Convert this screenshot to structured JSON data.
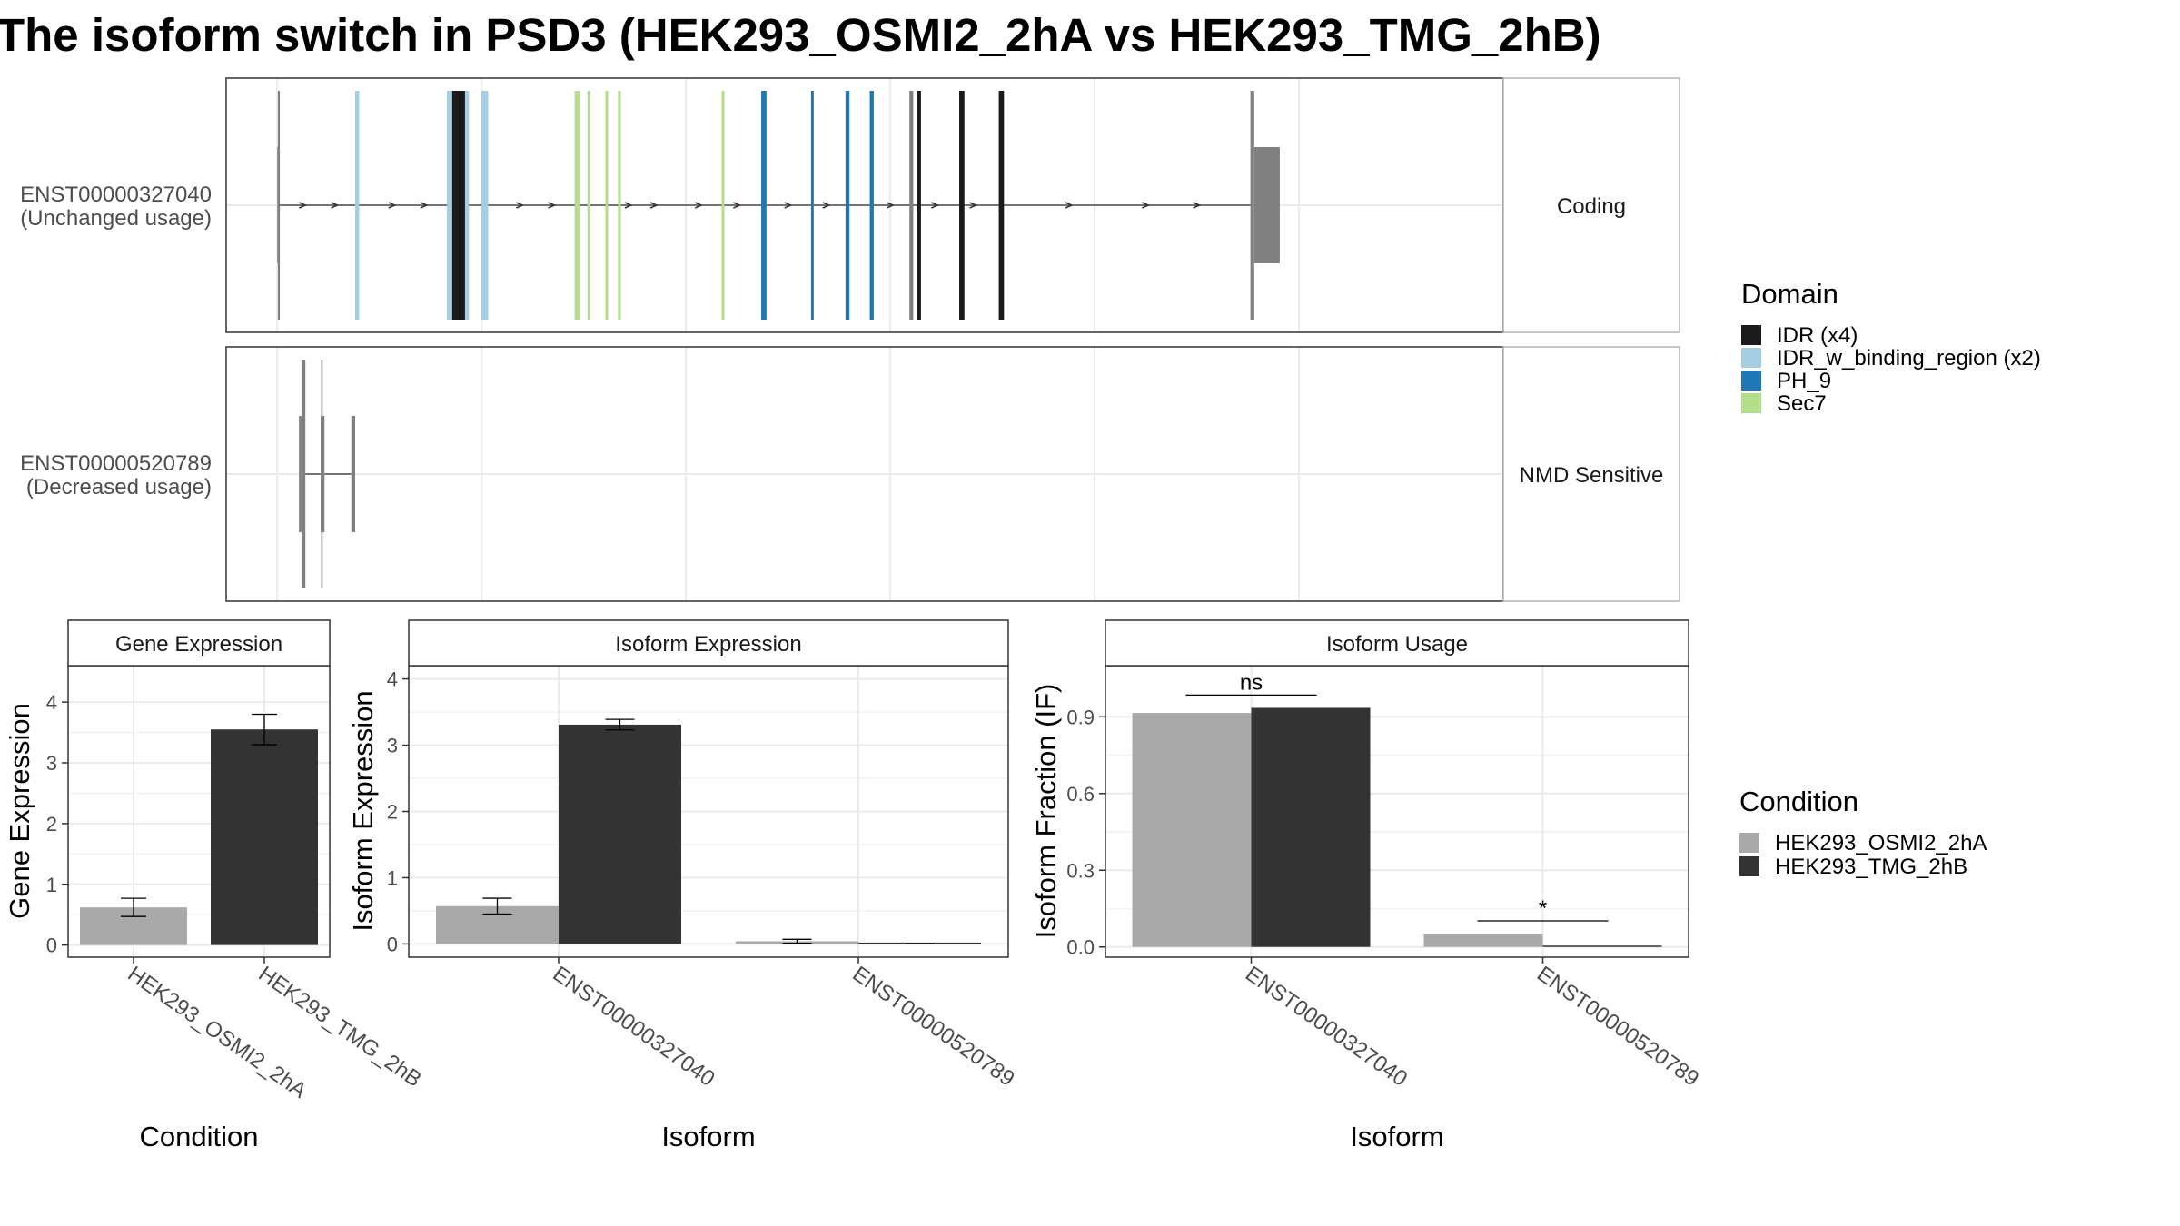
{
  "title": "The isoform switch in PSD3 (HEK293_OSMI2_2hA vs HEK293_TMG_2hB)",
  "colors": {
    "condition_a": "#a9a9a9",
    "condition_b": "#333333",
    "exon": "#808080",
    "IDR": "#1a1a1a",
    "IDR_w_binding_region": "#a6cee3",
    "PH_9": "#1f78b4",
    "Sec7": "#b2df8a"
  },
  "transcripts": [
    {
      "label_id": "ENST00000327040",
      "label_usage": "(Unchanged usage)",
      "strip": "Coding",
      "utr": [
        [
          40,
          40.5
        ],
        [
          805,
          825
        ]
      ],
      "exons": [
        [
          40.5,
          42
        ],
        [
          101,
          104
        ],
        [
          173,
          190
        ],
        [
          200,
          205
        ],
        [
          273,
          277
        ],
        [
          283,
          285
        ],
        [
          297,
          299
        ],
        [
          307,
          309
        ],
        [
          388,
          390
        ],
        [
          419,
          423
        ],
        [
          458,
          460
        ],
        [
          485,
          488
        ],
        [
          504,
          507
        ],
        [
          535,
          538
        ],
        [
          541,
          544
        ],
        [
          574,
          578
        ],
        [
          605,
          609
        ],
        [
          802,
          805
        ]
      ],
      "domains": [
        {
          "type": "IDR_w_binding_region",
          "from": 101,
          "to": 104
        },
        {
          "type": "IDR_w_binding_region",
          "from": 173,
          "to": 190
        },
        {
          "type": "IDR",
          "from": 177,
          "to": 187
        },
        {
          "type": "IDR_w_binding_region",
          "from": 200,
          "to": 205
        },
        {
          "type": "Sec7",
          "from": 273,
          "to": 277
        },
        {
          "type": "Sec7",
          "from": 283,
          "to": 285
        },
        {
          "type": "Sec7",
          "from": 297,
          "to": 299
        },
        {
          "type": "Sec7",
          "from": 307,
          "to": 309
        },
        {
          "type": "Sec7",
          "from": 388,
          "to": 390
        },
        {
          "type": "PH_9",
          "from": 419,
          "to": 423
        },
        {
          "type": "PH_9",
          "from": 458,
          "to": 460
        },
        {
          "type": "PH_9",
          "from": 485,
          "to": 488
        },
        {
          "type": "PH_9",
          "from": 504,
          "to": 507
        },
        {
          "type": "IDR",
          "from": 541,
          "to": 544
        },
        {
          "type": "IDR",
          "from": 574,
          "to": 578
        },
        {
          "type": "IDR",
          "from": 605,
          "to": 609
        }
      ],
      "arrows": [
        60,
        85,
        130,
        155,
        230,
        255,
        315,
        335,
        370,
        400,
        440,
        470,
        520,
        555,
        585,
        660,
        720,
        760
      ]
    },
    {
      "label_id": "ENST00000520789",
      "label_usage": "(Decreased usage)",
      "strip": "NMD Sensitive",
      "utr": [],
      "coding_exons": [
        [
          59,
          62
        ]
      ],
      "nc_exons": [
        [
          57,
          59
        ],
        [
          74,
          77
        ],
        [
          98,
          101
        ]
      ],
      "introns": [
        [
          62,
          74
        ],
        [
          77,
          98
        ],
        [
          74,
          77
        ]
      ]
    }
  ],
  "transcript_axis": {
    "xlim": [
      0,
      1000
    ],
    "gridlines": [
      40,
      200,
      360,
      520,
      680,
      840
    ]
  },
  "domain_legend": {
    "title": "Domain",
    "items": [
      {
        "label": "IDR (x4)",
        "key": "IDR"
      },
      {
        "label": "IDR_w_binding_region (x2)",
        "key": "IDR_w_binding_region"
      },
      {
        "label": "PH_9",
        "key": "PH_9"
      },
      {
        "label": "Sec7",
        "key": "Sec7"
      }
    ]
  },
  "condition_legend": {
    "title": "Condition",
    "items": [
      {
        "label": "HEK293_OSMI2_2hA",
        "key": "condition_a"
      },
      {
        "label": "HEK293_TMG_2hB",
        "key": "condition_b"
      }
    ]
  },
  "chart_data": [
    {
      "type": "bar",
      "title": "Gene Expression",
      "xlabel": "Condition",
      "ylabel": "Gene Expression",
      "categories": [
        "HEK293_OSMI2_2hA",
        "HEK293_TMG_2hB"
      ],
      "values": [
        0.62,
        3.55
      ],
      "error": [
        [
          0.47,
          0.77
        ],
        [
          3.3,
          3.8
        ]
      ],
      "ylim": [
        -0.2,
        4.6
      ],
      "yticks": [
        "0",
        "1",
        "2",
        "3",
        "4"
      ],
      "ytick_values": [
        0,
        1,
        2,
        3,
        4
      ]
    },
    {
      "type": "bar",
      "title": "Isoform Expression",
      "xlabel": "Isoform",
      "ylabel": "Isoform Expression",
      "categories": [
        "ENST00000327040",
        "ENST00000520789"
      ],
      "series": [
        {
          "key": "condition_a",
          "values": [
            0.57,
            0.04
          ],
          "error": [
            [
              0.45,
              0.69
            ],
            [
              0.01,
              0.07
            ]
          ]
        },
        {
          "key": "condition_b",
          "values": [
            3.31,
            0.0
          ],
          "error": [
            [
              3.23,
              3.39
            ],
            [
              0.0,
              0.0
            ]
          ]
        }
      ],
      "ylim": [
        -0.2,
        4.2
      ],
      "yticks": [
        "0",
        "1",
        "2",
        "3",
        "4"
      ],
      "ytick_values": [
        0,
        1,
        2,
        3,
        4
      ]
    },
    {
      "type": "bar",
      "title": "Isoform Usage",
      "xlabel": "Isoform",
      "ylabel": "Isoform Fraction (IF)",
      "categories": [
        "ENST00000327040",
        "ENST00000520789"
      ],
      "series": [
        {
          "key": "condition_a",
          "values": [
            0.915,
            0.052
          ]
        },
        {
          "key": "condition_b",
          "values": [
            0.935,
            0.0
          ]
        }
      ],
      "significance": [
        {
          "label": "ns",
          "y": 0.985
        },
        {
          "label": "*",
          "y": 0.102
        }
      ],
      "ylim": [
        -0.04,
        1.1
      ],
      "yticks": [
        "0.0",
        "0.3",
        "0.6",
        "0.9"
      ],
      "ytick_values": [
        0,
        0.3,
        0.6,
        0.9
      ]
    }
  ]
}
